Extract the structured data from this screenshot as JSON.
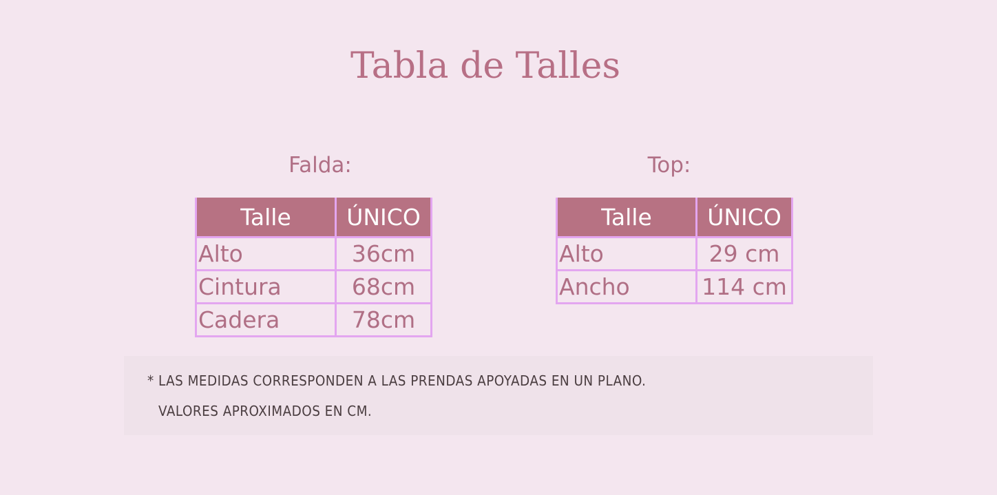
{
  "title": "Tabla de Talles",
  "falda": {
    "label": "Falda:",
    "header": [
      "Talle",
      "ÚNICO"
    ],
    "rows": [
      [
        "Alto",
        "36cm"
      ],
      [
        "Cintura",
        "68cm"
      ],
      [
        "Cadera",
        "78cm"
      ]
    ]
  },
  "top": {
    "label": "Top:",
    "header": [
      "Talle",
      "ÚNICO"
    ],
    "rows": [
      [
        "Alto",
        "29 cm"
      ],
      [
        "Ancho",
        "114 cm"
      ]
    ]
  },
  "note": {
    "line1": "* LAS MEDIDAS CORRESPONDEN A LAS PRENDAS APOYADAS EN UN PLANO.",
    "line2": "VALORES APROXIMADOS EN CM."
  },
  "colors": {
    "header": "#b77283",
    "border": "#e3a6f0",
    "text": "#b06f85",
    "background": "#f4e6ef"
  }
}
